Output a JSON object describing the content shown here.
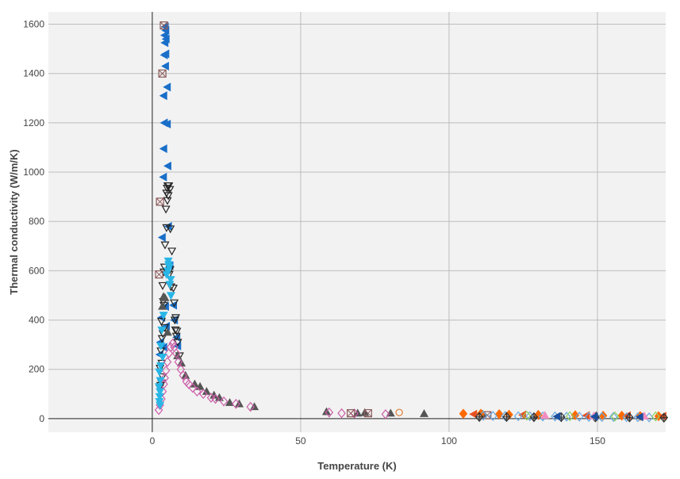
{
  "chart_data": {
    "type": "scatter",
    "xlabel": "Temperature (K)",
    "ylabel": "Thermal conductivity (W/m/K)",
    "xlim": [
      -35,
      173
    ],
    "ylim": [
      -55,
      1650
    ],
    "x_ticks": [
      0,
      50,
      100,
      150
    ],
    "y_ticks": [
      0,
      200,
      400,
      600,
      800,
      1000,
      1200,
      1400,
      1600
    ],
    "grid": true,
    "legend": "none",
    "plot_bg": "#f2f2f2",
    "series": [
      {
        "marker": "triangle-left",
        "color": "#1a6fc9",
        "filled": true,
        "points": [
          [
            4.4,
            1590
          ],
          [
            4.6,
            1575
          ],
          [
            4.2,
            1555
          ],
          [
            4.7,
            1540
          ],
          [
            4.3,
            1525
          ],
          [
            4.6,
            1480
          ],
          [
            4.1,
            1475
          ],
          [
            4.5,
            1430
          ],
          [
            5.1,
            1345
          ],
          [
            3.9,
            1310
          ],
          [
            4.1,
            1200
          ],
          [
            5.1,
            1195
          ],
          [
            3.9,
            1095
          ],
          [
            5.3,
            1025
          ],
          [
            3.8,
            980
          ],
          [
            5.5,
            780
          ],
          [
            3.4,
            735
          ],
          [
            6.0,
            620
          ],
          [
            4.5,
            455
          ],
          [
            7.2,
            460
          ],
          [
            3.2,
            410
          ],
          [
            7.5,
            400
          ],
          [
            4.8,
            375
          ],
          [
            8.3,
            330
          ],
          [
            2.8,
            310
          ],
          [
            8.6,
            295
          ],
          [
            3.9,
            290
          ],
          [
            2.6,
            260
          ]
        ]
      },
      {
        "marker": "triangle-down",
        "color": "#222222",
        "filled": false,
        "points": [
          [
            5.2,
            945
          ],
          [
            5.6,
            945
          ],
          [
            5.0,
            935
          ],
          [
            5.9,
            930
          ],
          [
            4.8,
            915
          ],
          [
            5.4,
            905
          ],
          [
            5.1,
            885
          ],
          [
            4.6,
            850
          ],
          [
            4.8,
            775
          ],
          [
            6.1,
            770
          ],
          [
            4.3,
            705
          ],
          [
            6.6,
            680
          ],
          [
            4.1,
            615
          ],
          [
            6.0,
            605
          ],
          [
            3.9,
            595
          ],
          [
            5.7,
            585
          ],
          [
            3.5,
            540
          ],
          [
            6.3,
            535
          ],
          [
            7.1,
            530
          ],
          [
            3.7,
            475
          ],
          [
            7.4,
            470
          ],
          [
            3.9,
            460
          ],
          [
            7.9,
            410
          ],
          [
            7.6,
            400
          ],
          [
            3.1,
            395
          ],
          [
            4.2,
            370
          ],
          [
            7.8,
            360
          ],
          [
            8.3,
            355
          ],
          [
            3.6,
            345
          ],
          [
            8.1,
            335
          ],
          [
            3.3,
            325
          ],
          [
            8.6,
            310
          ],
          [
            2.9,
            275
          ],
          [
            9.2,
            255
          ],
          [
            3.2,
            225
          ],
          [
            2.6,
            205
          ],
          [
            3.4,
            170
          ],
          [
            3.1,
            145
          ],
          [
            2.8,
            135
          ],
          [
            2.5,
            125
          ]
        ]
      },
      {
        "marker": "triangle-up",
        "color": "#555555",
        "filled": true,
        "points": [
          [
            3.8,
            495
          ],
          [
            4.3,
            490
          ],
          [
            3.4,
            455
          ],
          [
            5.2,
            350
          ],
          [
            8.5,
            255
          ],
          [
            9.8,
            225
          ],
          [
            11.2,
            175
          ],
          [
            14.3,
            140
          ],
          [
            16.1,
            130
          ],
          [
            18.3,
            110
          ],
          [
            20.8,
            95
          ],
          [
            22.6,
            85
          ],
          [
            26.1,
            65
          ],
          [
            29.3,
            60
          ],
          [
            34.4,
            48
          ],
          [
            58.7,
            28
          ],
          [
            69.2,
            22
          ],
          [
            71.6,
            24
          ],
          [
            80.3,
            22
          ],
          [
            91.6,
            20
          ],
          [
            111.3,
            18
          ],
          [
            129.8,
            15
          ],
          [
            149.6,
            12
          ]
        ]
      },
      {
        "marker": "diamond",
        "color": "#cc5fa8",
        "filled": false,
        "points": [
          [
            2.2,
            35
          ],
          [
            2.6,
            55
          ],
          [
            3.1,
            80
          ],
          [
            3.5,
            110
          ],
          [
            3.9,
            140
          ],
          [
            4.2,
            165
          ],
          [
            4.6,
            195
          ],
          [
            5.1,
            230
          ],
          [
            5.6,
            265
          ],
          [
            6.2,
            290
          ],
          [
            6.9,
            305
          ],
          [
            7.4,
            290
          ],
          [
            8.1,
            265
          ],
          [
            8.8,
            230
          ],
          [
            9.6,
            200
          ],
          [
            10.4,
            175
          ],
          [
            11.5,
            150
          ],
          [
            12.3,
            140
          ],
          [
            13.6,
            125
          ],
          [
            15.1,
            110
          ],
          [
            17.2,
            100
          ],
          [
            19.8,
            85
          ],
          [
            21.3,
            80
          ],
          [
            24.1,
            70
          ],
          [
            28.2,
            60
          ],
          [
            33.1,
            48
          ],
          [
            59.6,
            25
          ],
          [
            63.8,
            22
          ],
          [
            68.1,
            21
          ],
          [
            78.6,
            18
          ]
        ]
      },
      {
        "marker": "triangle-down",
        "color": "#29b6e6",
        "filled": true,
        "points": [
          [
            5.4,
            640
          ],
          [
            5.5,
            625
          ],
          [
            5.7,
            615
          ],
          [
            5.2,
            600
          ],
          [
            4.8,
            585
          ],
          [
            6.2,
            565
          ],
          [
            5.9,
            545
          ],
          [
            6.3,
            500
          ],
          [
            3.8,
            420
          ],
          [
            3.2,
            360
          ],
          [
            2.9,
            295
          ],
          [
            3.5,
            250
          ],
          [
            2.8,
            215
          ],
          [
            2.4,
            190
          ],
          [
            2.7,
            155
          ],
          [
            2.3,
            130
          ],
          [
            2.6,
            110
          ],
          [
            2.5,
            90
          ],
          [
            2.4,
            70
          ],
          [
            2.6,
            55
          ]
        ]
      },
      {
        "marker": "square-x",
        "color": "#8b5a5a",
        "filled": false,
        "points": [
          [
            3.9,
            1595
          ],
          [
            3.4,
            1400
          ],
          [
            2.6,
            880
          ],
          [
            2.3,
            585
          ],
          [
            66.9,
            22
          ],
          [
            72.7,
            22
          ],
          [
            112.9,
            14
          ]
        ]
      },
      {
        "marker": "circle",
        "color": "#e07b30",
        "filled": false,
        "points": [
          [
            83.2,
            25
          ]
        ]
      },
      {
        "marker": "diamond",
        "color": "#ff6a00",
        "filled": true,
        "points": [
          [
            104.8,
            20
          ],
          [
            110.7,
            20
          ],
          [
            116.9,
            18
          ],
          [
            120.2,
            16
          ],
          [
            130.1,
            15
          ],
          [
            142.5,
            14
          ],
          [
            151.9,
            12
          ],
          [
            158.2,
            12
          ],
          [
            164.4,
            11
          ],
          [
            170.6,
            10
          ]
        ]
      },
      {
        "marker": "triangle-left",
        "color": "#e85020",
        "filled": true,
        "points": [
          [
            108.3,
            18
          ],
          [
            124.8,
            15
          ],
          [
            146.3,
            13
          ],
          [
            160.1,
            12
          ],
          [
            172.1,
            10
          ]
        ]
      },
      {
        "marker": "diamond",
        "color": "#69a7e0",
        "filled": false,
        "points": [
          [
            111.5,
            12
          ],
          [
            114.8,
            11
          ],
          [
            118.9,
            11
          ],
          [
            123.3,
            10
          ],
          [
            127.2,
            10
          ],
          [
            131.6,
            9
          ],
          [
            135.7,
            9
          ],
          [
            139.6,
            8
          ],
          [
            143.9,
            8
          ],
          [
            147.1,
            7
          ],
          [
            151.5,
            7
          ],
          [
            155.4,
            7
          ],
          [
            159.8,
            6
          ],
          [
            163.6,
            6
          ],
          [
            167.4,
            5
          ]
        ]
      },
      {
        "marker": "diamond-plus",
        "color": "#333333",
        "filled": false,
        "points": [
          [
            110.2,
            7
          ],
          [
            119.4,
            7
          ],
          [
            128.6,
            6
          ],
          [
            137.8,
            6
          ],
          [
            149.3,
            5
          ],
          [
            160.8,
            5
          ],
          [
            172.4,
            4
          ]
        ]
      },
      {
        "marker": "diamond",
        "color": "#8fd05f",
        "filled": false,
        "points": [
          [
            126.2,
            12
          ],
          [
            140.7,
            10
          ],
          [
            155.9,
            9
          ],
          [
            169.6,
            9
          ]
        ]
      },
      {
        "marker": "triangle-up",
        "color": "#f08cc0",
        "filled": true,
        "points": [
          [
            132.3,
            13
          ],
          [
            148.8,
            11
          ],
          [
            165.8,
            10
          ]
        ]
      },
      {
        "marker": "triangle-left",
        "color": "#1a4fa0",
        "filled": true,
        "points": [
          [
            149.0,
            8
          ],
          [
            136.4,
            9
          ],
          [
            164.3,
            7
          ]
        ]
      }
    ]
  }
}
